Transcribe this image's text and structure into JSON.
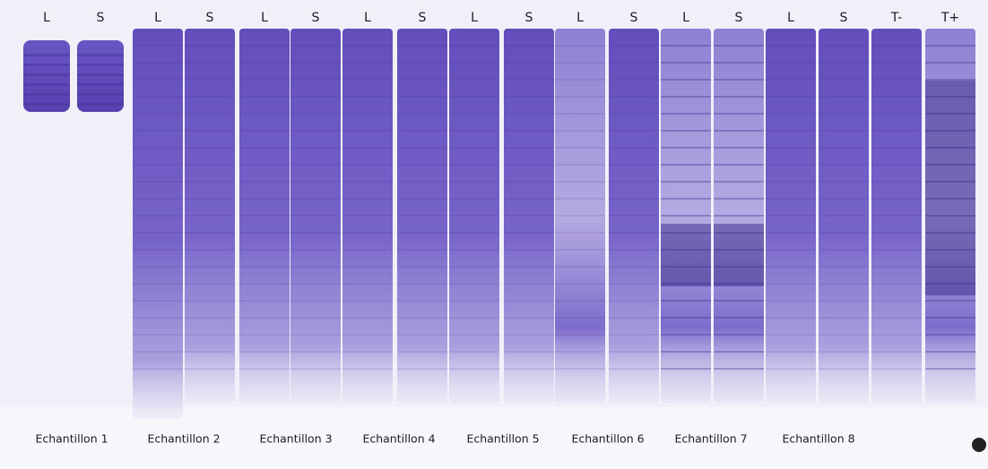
{
  "lane_labels": [
    "L",
    "S",
    "L",
    "S",
    "L",
    "S",
    "L",
    "S",
    "L",
    "S",
    "L",
    "S",
    "L",
    "S",
    "L",
    "S",
    "T-",
    "T+"
  ],
  "sample_labels": [
    "Echantillon 1",
    "Echantillon 2",
    "Echantillon 3",
    "Echantillon 4",
    "Echantillon 5",
    "Echantillon 6",
    "Echantillon 7",
    "Echantillon 8"
  ]
}
